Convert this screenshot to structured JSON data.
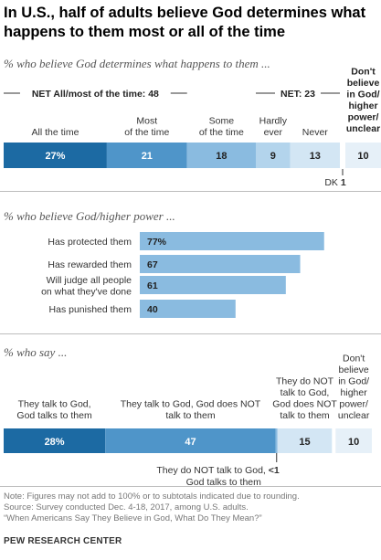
{
  "title": "In U.S., half of adults believe God determines what happens to them most or all of the time",
  "chart_data": [
    {
      "type": "bar",
      "subtitle": "% who believe God determines what happens to them ...",
      "categories": [
        "All the time",
        "Most of the time",
        "Some of the time",
        "Hardly ever",
        "Never",
        "Don't believe in God/ higher power/ unclear"
      ],
      "values": [
        27,
        21,
        18,
        9,
        13,
        10
      ],
      "labels": [
        "27%",
        "21",
        "18",
        "9",
        "13",
        "10"
      ],
      "colors": [
        "#1c6aa3",
        "#4f95c9",
        "#8abbe0",
        "#b3d4ec",
        "#d3e6f4",
        "#e6f0f8"
      ],
      "net_labels": [
        "NET All/most of the time: 48",
        "NET: 23"
      ],
      "dk_label": "DK",
      "dk_value": "1"
    },
    {
      "type": "bar",
      "subtitle": "% who believe God/higher power ...",
      "categories": [
        "Has protected them",
        "Has rewarded them",
        "Will judge all people on what they've done",
        "Has punished them"
      ],
      "values": [
        77,
        67,
        61,
        40
      ],
      "labels": [
        "77%",
        "67",
        "61",
        "40"
      ],
      "color": "#8abbe0",
      "xlim": [
        0,
        100
      ]
    },
    {
      "type": "bar",
      "subtitle": "% who say ...",
      "categories": [
        "They talk to God, God talks to them",
        "They talk to God, God does NOT talk to them",
        "They do NOT talk to God, God talks to them",
        "They do NOT talk to God, God does NOT talk to them",
        "Don't believe in God/ higher power/ unclear"
      ],
      "values": [
        28,
        47,
        0.5,
        15,
        10
      ],
      "labels": [
        "28%",
        "47",
        "<1",
        "15",
        "10"
      ],
      "colors": [
        "#1c6aa3",
        "#4f95c9",
        "#8abbe0",
        "#d3e6f4",
        "#e6f0f8"
      ]
    }
  ],
  "notes": [
    "Note: Figures may not add to 100% or to subtotals indicated due to rounding.",
    "Source: Survey conducted Dec. 4-18, 2017, among U.S. adults.",
    "“When Americans Say They Believe in God, What Do They Mean?”"
  ],
  "brand": "PEW RESEARCH CENTER"
}
